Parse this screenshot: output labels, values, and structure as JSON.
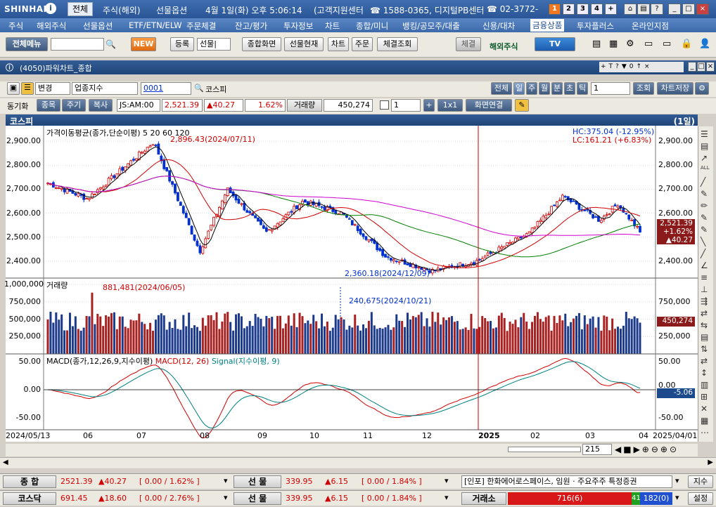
{
  "app": {
    "logo": "SHINHAN",
    "logo_mark": "i"
  },
  "titlebar": {
    "tab": "전체",
    "items": [
      "주식(해외)",
      "선물옵션",
      "4월 1일(화) 오후 5:06:14",
      "(고객지원센터",
      "☎ 1588-0365, 디지털PB센터",
      "☎ 02-3772-"
    ],
    "num_buttons": [
      "1",
      "2",
      "3",
      "4",
      "+"
    ]
  },
  "menu": [
    "주식",
    "해외주식",
    "선물옵션",
    "ETF/ETN/ELW",
    "주문체결",
    "잔고/평가",
    "투자정보",
    "차트",
    "종합/미니",
    "뱅킹/공모주/대출",
    "신용/대차",
    "금융상품",
    "투자플러스",
    "온라인지점"
  ],
  "toolbar": {
    "all_menu": "전체메뉴",
    "new": "NEW",
    "register": "등록",
    "select": "선물|",
    "combined": "종합화면",
    "futures_status": "선물현재",
    "chart": "차트",
    "order": "주문",
    "fill_query": "체결조회",
    "settle": "체결",
    "overseas": "해외주식",
    "tv": "TV"
  },
  "window": {
    "title": "(4050)파워차트_종합"
  },
  "ctrl1": {
    "change": "변경",
    "index_type": "업종지수",
    "code": "0001",
    "name": "코스피",
    "periods": [
      "전체",
      "일",
      "주",
      "월",
      "분",
      "초",
      "틱"
    ],
    "count": "1",
    "query": "조회",
    "save": "차트저장"
  },
  "ctrl2": {
    "sync": "동기화",
    "item": "종목",
    "period": "주기",
    "copy": "복사",
    "code_label": "JS:AM:00",
    "price": "2,521.39",
    "change": "▲40.27",
    "pct": "1.62%",
    "vol_label": "거래량",
    "volume": "450,274",
    "spin": "1",
    "layout": "1x1",
    "link": "화면연결"
  },
  "chart": {
    "name": "코스피",
    "period_label": "(1일)",
    "price_legend": "가격이동평균(종가,단순이평) 5 20 60 120",
    "hc": "HC:375.04 (-12.95%)",
    "lc": "LC:161.21 (+6.83%)",
    "high_annot": "2,896.43(2024/07/11)",
    "low_annot": "2,360.18(2024/12/09)",
    "price_ticks": [
      "2,900.00",
      "2,800.00",
      "2,700.00",
      "2,600.00",
      "2,500.00",
      "2,400.00"
    ],
    "price_ticks_right": [
      "2,900.00",
      "2,800.00",
      "2,700.00",
      "2,600.00",
      "2,500.00",
      "2,400.00"
    ],
    "price_tag": [
      "2,521.39",
      "+1.62%",
      "▲40.27"
    ],
    "vol_legend": "거래량",
    "vol_max_annot": "881,481(2024/06/05)",
    "vol_annot": "240,675(2024/10/21)",
    "vol_ticks": [
      "1,000,000",
      "750,000",
      "500,000",
      "250,000"
    ],
    "vol_ticks_right": [
      "750,000",
      "250,000"
    ],
    "vol_tag": "450,274",
    "macd_legend": "MACD(종가,12,26,9,지수이평)",
    "macd_legend2": "MACD(12, 26)",
    "macd_legend3": "Signal(지수이평, 9)",
    "macd_ticks": [
      "50.00",
      "0.00",
      "-50.00"
    ],
    "macd_ticks_right": [
      "50.00",
      "-50.00"
    ],
    "macd_tag": "-5.06",
    "macd_zero_right": "0.00",
    "xaxis": [
      "2024/05/13",
      "06",
      "07",
      "08",
      "09",
      "10",
      "11",
      "12",
      "2025",
      "02",
      "03",
      "04",
      "2025/04/01"
    ],
    "zoom": "215"
  },
  "colors": {
    "up": "#d00000",
    "down": "#0030d0",
    "ma5": "#000000",
    "ma20": "#d00000",
    "ma60": "#008000",
    "ma120": "#d000d0"
  },
  "chart_data": {
    "type": "candlestick",
    "title": "코스피 (1일)",
    "x_range": [
      "2024/05/13",
      "2025/04/01"
    ],
    "ylim": [
      2340,
      2940
    ],
    "price_key_points": [
      {
        "date": "2024/05/13",
        "close": 2730
      },
      {
        "date": "2024/06/05",
        "close": 2660
      },
      {
        "date": "2024/07/11",
        "close": 2896.43
      },
      {
        "date": "2024/08/05",
        "close": 2441
      },
      {
        "date": "2024/08/20",
        "close": 2700
      },
      {
        "date": "2024/09/10",
        "close": 2520
      },
      {
        "date": "2024/09/30",
        "close": 2650
      },
      {
        "date": "2024/10/21",
        "close": 2600
      },
      {
        "date": "2024/11/14",
        "close": 2420
      },
      {
        "date": "2024/12/09",
        "close": 2360.18
      },
      {
        "date": "2025/01/02",
        "close": 2400
      },
      {
        "date": "2025/01/31",
        "close": 2517
      },
      {
        "date": "2025/02/18",
        "close": 2670
      },
      {
        "date": "2025/03/10",
        "close": 2570
      },
      {
        "date": "2025/03/20",
        "close": 2640
      },
      {
        "date": "2025/04/01",
        "close": 2521.39
      }
    ],
    "volume_key_points": [
      {
        "date": "2024/06/05",
        "value": 881481
      },
      {
        "date": "2024/10/21",
        "value": 240675
      },
      {
        "date": "2025/04/01",
        "value": 450274
      }
    ],
    "macd_ylim": [
      -75,
      60
    ],
    "last": {
      "close": 2521.39,
      "change": 40.27,
      "pct": 1.62,
      "volume": 450274,
      "macd": -5.06
    }
  },
  "bottom": {
    "row1": {
      "label": "종 합",
      "price": "2521.39",
      "chg": "▲40.27",
      "pct": "[ 0.00 / 1.62% ]",
      "label2": "선 물",
      "price2": "339.95",
      "chg2": "▲6.15",
      "pct2": "[ 0.00 / 1.84% ]",
      "news": "[인포] 한화에어로스페이스, 임원 · 주요주주 특정증권",
      "btn": "지수"
    },
    "row2": {
      "label": "코스닥",
      "price": "691.45",
      "chg": "▲18.60",
      "pct": "[ 0.00 / 2.76% ]",
      "label2": "선 물",
      "price2": "339.95",
      "chg2": "▲6.15",
      "pct2": "[ 0.00 / 1.84% ]",
      "label3": "거래소",
      "up": "716(6)",
      "flat": "41",
      "down": "182(0)",
      "btn": "설정"
    }
  }
}
